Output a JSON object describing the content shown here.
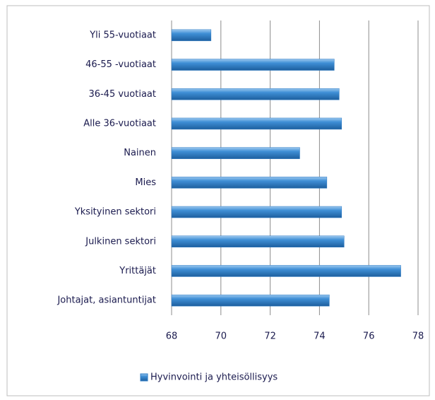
{
  "chart_data": {
    "type": "bar",
    "orientation": "horizontal",
    "categories": [
      "Yli 55-vuotiaat",
      "46-55 -vuotiaat",
      "36-45 vuotiaat",
      "Alle 36-vuotiaat",
      "Nainen",
      "Mies",
      "Yksityinen sektori",
      "Julkinen sektori",
      "Yrittäjät",
      "Johtajat, asiantuntijat"
    ],
    "series": [
      {
        "name": "Hyvinvointi ja yhteisöllisyys",
        "color": "#2e7bc4",
        "values": [
          69.6,
          74.6,
          74.8,
          74.9,
          73.2,
          74.3,
          74.9,
          75.0,
          77.3,
          74.4
        ]
      }
    ],
    "xlim": [
      68,
      78
    ],
    "xticks": [
      68,
      70,
      72,
      74,
      76,
      78
    ],
    "grid": true,
    "legend": "bottom"
  }
}
